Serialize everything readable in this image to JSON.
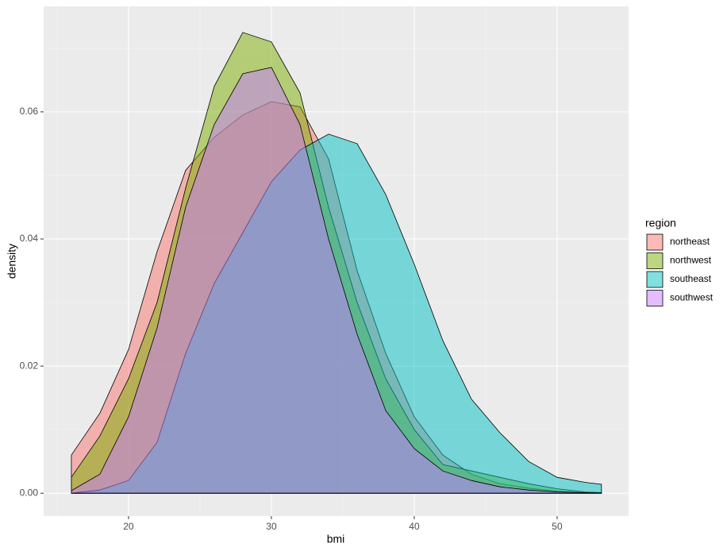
{
  "chart_data": {
    "type": "density",
    "x_label": "bmi",
    "y_label": "density",
    "legend_title": "region",
    "legend_position": "right",
    "grid": true,
    "outline_color": "#000000",
    "alpha": 0.5,
    "xlim": [
      14.06,
      55
    ],
    "ylim": [
      -0.0036,
      0.0766
    ],
    "xticks": [
      20,
      30,
      40,
      50
    ],
    "yticks": [
      {
        "value": 0,
        "label": "0.00"
      },
      {
        "value": 0.02,
        "label": "0.02"
      },
      {
        "value": 0.04,
        "label": "0.04"
      },
      {
        "value": 0.06,
        "label": "0.06"
      }
    ],
    "x": [
      16,
      18,
      20,
      22,
      24,
      26,
      28,
      30,
      32,
      34,
      36,
      38,
      40,
      42,
      44,
      46,
      48,
      50,
      52,
      53.1
    ],
    "series": [
      {
        "name": "northeast",
        "color": "#F8766D",
        "values": [
          0.006,
          0.0126,
          0.0226,
          0.038,
          0.0508,
          0.056,
          0.0595,
          0.0616,
          0.0608,
          0.0526,
          0.035,
          0.022,
          0.012,
          0.006,
          0.003,
          0.0015,
          0.0008,
          0.0003,
          0.0001,
          0.0
        ]
      },
      {
        "name": "northwest",
        "color": "#7CAE00",
        "values": [
          0.0025,
          0.009,
          0.018,
          0.03,
          0.048,
          0.064,
          0.0725,
          0.071,
          0.063,
          0.045,
          0.03,
          0.018,
          0.01,
          0.0045,
          0.0035,
          0.0025,
          0.0015,
          0.0007,
          0.0002,
          0.0001
        ]
      },
      {
        "name": "southeast",
        "color": "#00BFC4",
        "values": [
          0.0,
          0.0005,
          0.002,
          0.008,
          0.022,
          0.033,
          0.041,
          0.049,
          0.054,
          0.0565,
          0.055,
          0.047,
          0.036,
          0.024,
          0.0148,
          0.0095,
          0.005,
          0.0025,
          0.0017,
          0.0014
        ]
      },
      {
        "name": "southwest",
        "color": "#C77CFF",
        "values": [
          0.0004,
          0.003,
          0.012,
          0.026,
          0.045,
          0.058,
          0.066,
          0.067,
          0.058,
          0.04,
          0.025,
          0.013,
          0.007,
          0.0035,
          0.002,
          0.001,
          0.0005,
          0.0002,
          0.0001,
          0.0
        ]
      }
    ]
  }
}
